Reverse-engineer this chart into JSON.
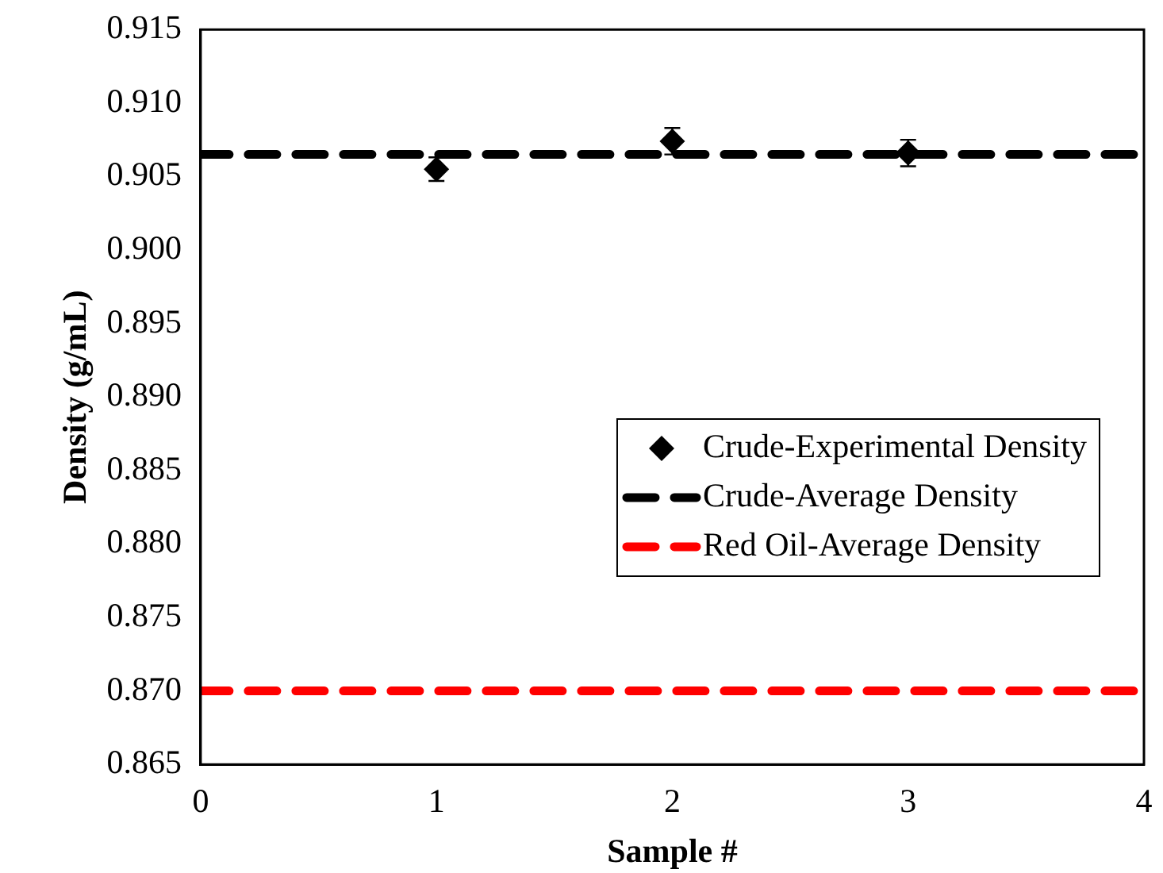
{
  "chart_data": {
    "type": "scatter",
    "xlabel": "Sample #",
    "ylabel": "Density (g/mL)",
    "xlim": [
      0,
      4
    ],
    "xticks": [
      0,
      1,
      2,
      3,
      4
    ],
    "ylim": [
      0.865,
      0.915
    ],
    "yticks": [
      0.865,
      {
        "value": 0.87,
        "label": "0.870"
      },
      0.875,
      {
        "value": 0.88,
        "label": "0.880"
      },
      0.885,
      {
        "value": 0.89,
        "label": "0.890"
      },
      0.895,
      {
        "value": 0.9,
        "label": "0.900"
      },
      0.905,
      {
        "value": 0.91,
        "label": "0.910"
      },
      0.915
    ],
    "grid": false,
    "legend": "right",
    "marker": "diamond",
    "series": [
      {
        "name": "Crude-Experimental Density",
        "color": "#000000",
        "x": [
          1,
          2,
          3
        ],
        "values": [
          0.9055,
          0.9074,
          0.9066
        ],
        "errors": [
          0.0008,
          0.0009,
          0.0009
        ]
      },
      {
        "name": "Crude-Average Density",
        "type": "line",
        "color": "#000000",
        "line_style": "dashed",
        "marker": "none",
        "x": [
          0,
          4
        ],
        "values": [
          0.9065,
          0.9065
        ]
      },
      {
        "name": "Red Oil-Average Density",
        "type": "line",
        "color": "#ff0000",
        "line_style": "dashed",
        "marker": "none",
        "x": [
          0,
          4
        ],
        "values": [
          0.87,
          0.87
        ]
      }
    ]
  }
}
